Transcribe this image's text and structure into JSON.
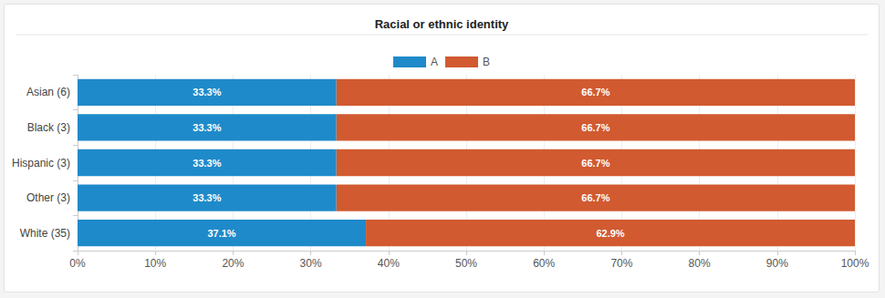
{
  "chart_data": {
    "type": "bar",
    "title": "Racial or ethnic identity",
    "orientation": "horizontal",
    "stacked": true,
    "data_labels": true,
    "grid": true,
    "legend": "top",
    "categories": [
      "Asian (6)",
      "Black (3)",
      "Hispanic (3)",
      "Other (3)",
      "White (35)"
    ],
    "series": [
      {
        "name": "A",
        "color": "#1f8ac9",
        "values": [
          33.3,
          33.3,
          33.3,
          33.3,
          37.1
        ],
        "value_labels": [
          "33.3%",
          "33.3%",
          "33.3%",
          "33.3%",
          "37.1%"
        ]
      },
      {
        "name": "B",
        "color": "#d15a30",
        "values": [
          66.7,
          66.7,
          66.7,
          66.7,
          62.9
        ],
        "value_labels": [
          "66.7%",
          "66.7%",
          "66.7%",
          "66.7%",
          "62.9%"
        ]
      }
    ],
    "xlim": [
      0,
      100
    ],
    "xticks": [
      {
        "value": 0,
        "label": "0%"
      },
      {
        "value": 10,
        "label": "10%"
      },
      {
        "value": 20,
        "label": "20%"
      },
      {
        "value": 30,
        "label": "30%"
      },
      {
        "value": 40,
        "label": "40%"
      },
      {
        "value": 50,
        "label": "50%"
      },
      {
        "value": 60,
        "label": "60%"
      },
      {
        "value": 70,
        "label": "70%"
      },
      {
        "value": 80,
        "label": "80%"
      },
      {
        "value": 90,
        "label": "90%"
      },
      {
        "value": 100,
        "label": "100%"
      }
    ]
  }
}
